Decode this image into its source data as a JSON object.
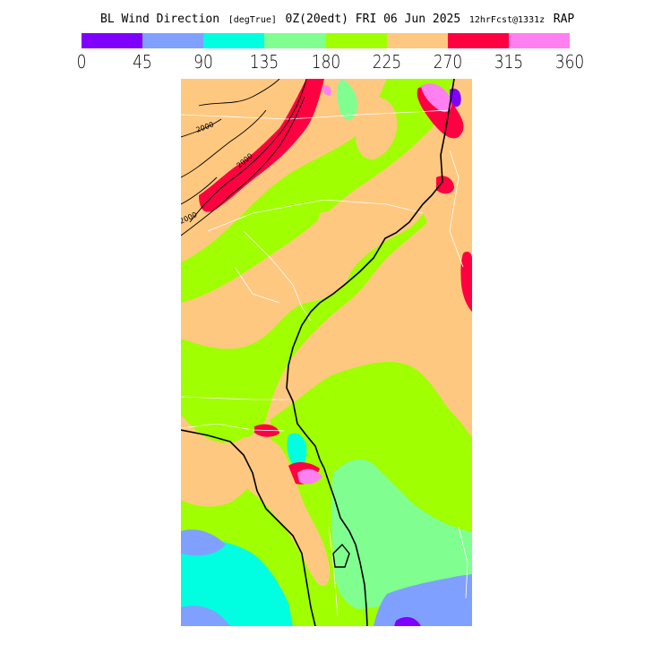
{
  "header": {
    "title": "BL Wind Direction",
    "units": "[degTrue]",
    "valid_time": "0Z(20edt) FRI 06 Jun 2025",
    "forecast": "12hrFcst@1331z",
    "model": "RAP"
  },
  "colorbar": {
    "colors": [
      "#8000ff",
      "#80a0ff",
      "#00ffe0",
      "#80ff90",
      "#a0ff00",
      "#ffc880",
      "#ff0040",
      "#ff80f0"
    ],
    "ticks": [
      "0",
      "45",
      "90",
      "135",
      "180",
      "225",
      "270",
      "315",
      "360"
    ]
  },
  "map": {
    "contour_labels": [
      "2000",
      "2000",
      "2000"
    ]
  }
}
